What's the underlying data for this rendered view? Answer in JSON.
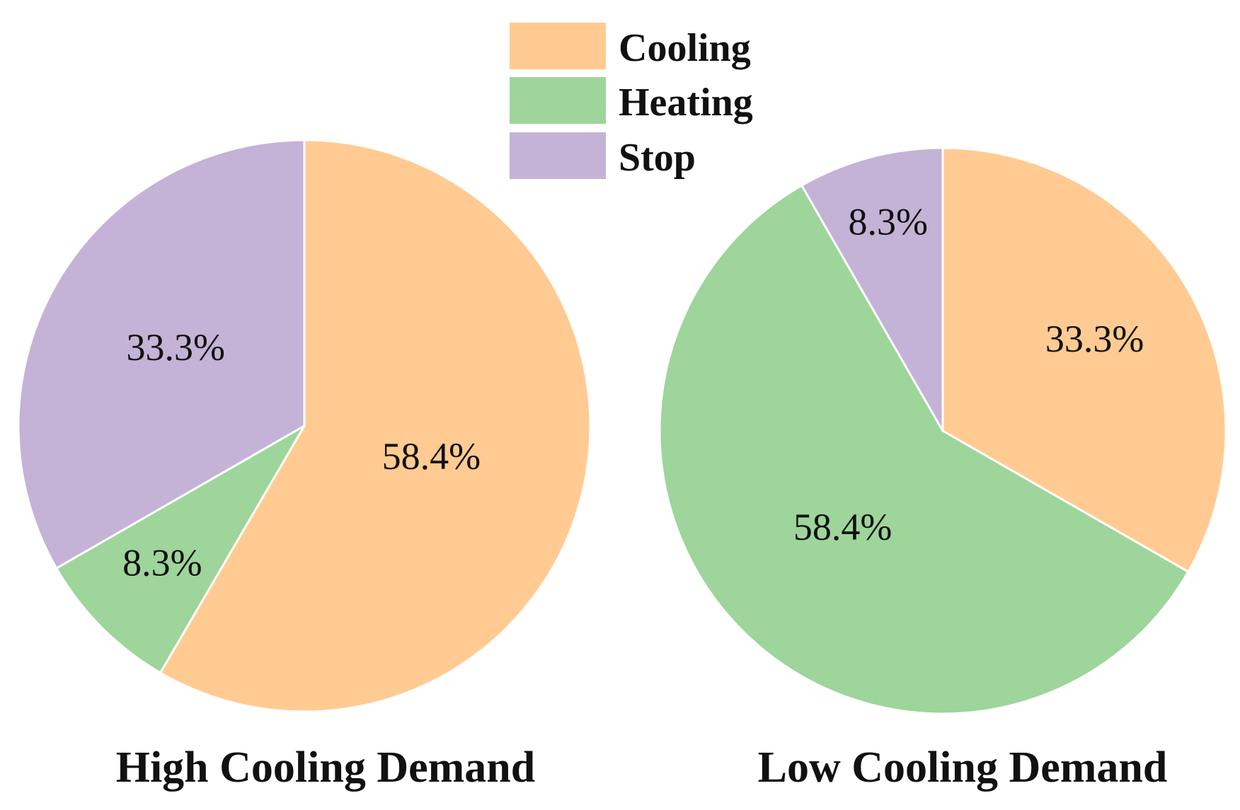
{
  "chart_data": {
    "type": "pie",
    "legend": {
      "placement": "top-center",
      "entries": [
        {
          "label": "Cooling",
          "color": "#FFCB92"
        },
        {
          "label": "Heating",
          "color": "#9ED59B"
        },
        {
          "label": "Stop",
          "color": "#C4B3D6"
        }
      ]
    },
    "charts": [
      {
        "title": "High Cooling Demand",
        "slices": [
          {
            "category": "Cooling",
            "value": 58.4,
            "label": "58.4%"
          },
          {
            "category": "Heating",
            "value": 8.3,
            "label": "8.3%"
          },
          {
            "category": "Stop",
            "value": 33.3,
            "label": "33.3%"
          }
        ]
      },
      {
        "title": "Low Cooling Demand",
        "slices": [
          {
            "category": "Cooling",
            "value": 33.3,
            "label": "33.3%"
          },
          {
            "category": "Heating",
            "value": 58.4,
            "label": "58.4%"
          },
          {
            "category": "Stop",
            "value": 8.3,
            "label": "8.3%"
          }
        ]
      }
    ]
  }
}
